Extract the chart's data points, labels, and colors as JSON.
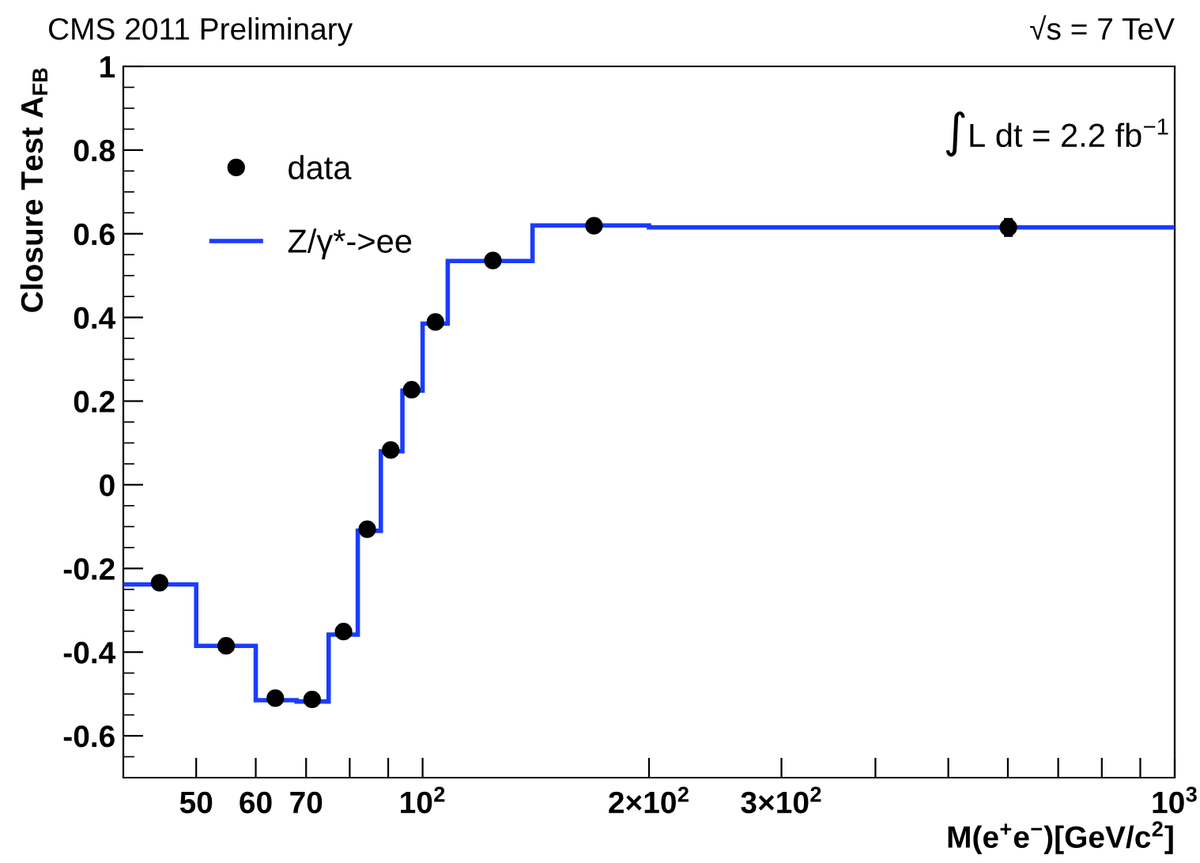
{
  "chart_data": {
    "type": "scatter",
    "title": "CMS 2011 Preliminary",
    "annotations": [
      "√s = 7 TeV",
      "∫L dt = 2.2 fb$^{−1}$"
    ],
    "xlabel": "M(e$^{+}$e$^{−}$)[GeV/c$^{2}$]",
    "ylabel": "Closure Test A$_{FB}$",
    "log": "x",
    "xlim": [
      40,
      1000
    ],
    "xticks": [
      50,
      60,
      70,
      {
        "value": 80,
        "label": null
      },
      {
        "value": 90,
        "label": null
      },
      {
        "value": 100,
        "label": "10$^{2}$"
      },
      {
        "value": 200,
        "label": "2×10$^{2}$"
      },
      {
        "value": 300,
        "label": "3×10$^{2}$"
      },
      {
        "value": 400,
        "label": null
      },
      {
        "value": 500,
        "label": null
      },
      {
        "value": 600,
        "label": null
      },
      {
        "value": 700,
        "label": null
      },
      {
        "value": 800,
        "label": null
      },
      {
        "value": 900,
        "label": null
      },
      {
        "value": 1000,
        "label": "10$^{3}$"
      }
    ],
    "ylim": [
      -0.7,
      1
    ],
    "yticks": [
      -0.6,
      -0.4,
      -0.2,
      0,
      0.2,
      0.4,
      0.6,
      0.8,
      1
    ],
    "grid": false,
    "legend": "top left",
    "series": [
      {
        "name": "data",
        "color": "#000000",
        "marker": "circle",
        "x": [
          44.7,
          54.8,
          63.7,
          71.3,
          78.5,
          84.4,
          90.7,
          96.7,
          104,
          124,
          169,
          601
        ],
        "values": [
          -0.234,
          -0.385,
          -0.51,
          -0.513,
          -0.351,
          -0.106,
          0.083,
          0.227,
          0.389,
          0.536,
          0.619,
          0.615
        ],
        "errors": [
          0.015,
          0.01,
          0.01,
          0.012,
          0.01,
          0.008,
          0.008,
          0.008,
          0.008,
          0.008,
          0.008,
          0.02
        ]
      },
      {
        "name": "Z/γ*->ee",
        "type": "histogram",
        "color": "#1a3cff",
        "bins": [
          40,
          50,
          60,
          68,
          75,
          82,
          88,
          94,
          100,
          108,
          140,
          200,
          1000
        ],
        "values": [
          -0.238,
          -0.385,
          -0.515,
          -0.518,
          -0.358,
          -0.11,
          0.08,
          0.225,
          0.385,
          0.535,
          0.62,
          0.615
        ]
      }
    ]
  }
}
